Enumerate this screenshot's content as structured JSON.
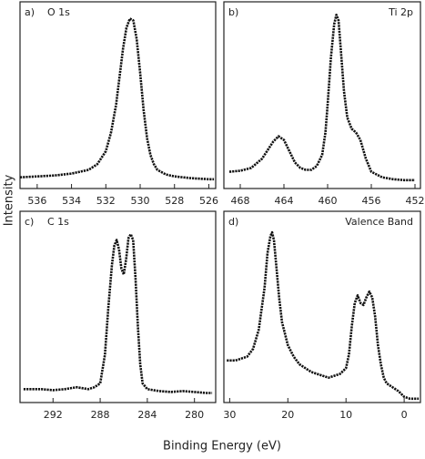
{
  "y_label": "Intensity",
  "x_label": "Binding Energy (eV)",
  "chart_data": [
    {
      "type": "line",
      "panel_label": "a)",
      "title": "O 1s",
      "title_side": "left",
      "color": "#111111",
      "x": [
        537,
        536,
        535,
        534,
        533,
        532.5,
        532,
        531.7,
        531.4,
        531.2,
        531,
        530.8,
        530.6,
        530.4,
        530.2,
        530,
        529.8,
        529.6,
        529.4,
        529.2,
        529,
        528.5,
        528,
        527,
        526,
        525.7
      ],
      "values": [
        6,
        6.5,
        7,
        8,
        10,
        13,
        20,
        30,
        45,
        60,
        75,
        86,
        91,
        90,
        80,
        62,
        42,
        27,
        18,
        13,
        10,
        7.5,
        6.5,
        5.5,
        5,
        5
      ],
      "xlim": [
        537,
        525.6
      ],
      "xticks": [
        536,
        534,
        532,
        530,
        528,
        526
      ],
      "ylim": [
        0,
        100
      ]
    },
    {
      "type": "line",
      "panel_label": "b)",
      "title": "Ti 2p",
      "title_side": "right",
      "color": "#111111",
      "x": [
        469,
        468,
        467,
        466,
        465,
        464.5,
        464,
        463.5,
        463,
        462.5,
        462,
        461.5,
        461,
        460.5,
        460.2,
        460,
        459.7,
        459.4,
        459.2,
        459,
        458.8,
        458.5,
        458.2,
        457.8,
        457.4,
        457,
        456.5,
        456,
        455,
        454,
        453,
        452
      ],
      "values": [
        9,
        9.5,
        11,
        16,
        25,
        28,
        26,
        20,
        14,
        11,
        10,
        10,
        12,
        18,
        30,
        45,
        70,
        88,
        93,
        90,
        75,
        52,
        38,
        32,
        30,
        26,
        16,
        9,
        6,
        5,
        4.5,
        4.5
      ],
      "xlim": [
        469.5,
        451.5
      ],
      "xticks": [
        468,
        464,
        460,
        456,
        452
      ],
      "ylim": [
        0,
        100
      ]
    },
    {
      "type": "line",
      "panel_label": "c)",
      "title": "C 1s",
      "title_side": "left",
      "color": "#111111",
      "x": [
        294.5,
        293,
        292,
        291,
        290,
        289,
        288.5,
        288,
        287.6,
        287.3,
        287,
        286.8,
        286.6,
        286.4,
        286.2,
        286,
        285.8,
        285.6,
        285.4,
        285.2,
        285,
        284.8,
        284.6,
        284.4,
        284,
        283,
        282,
        281,
        280,
        279,
        278.5
      ],
      "values": [
        7,
        7,
        6.5,
        7,
        8,
        7,
        8,
        10,
        25,
        50,
        72,
        82,
        85,
        80,
        70,
        67,
        75,
        86,
        88,
        85,
        65,
        40,
        20,
        10,
        7,
        6,
        5.5,
        6,
        5.5,
        5,
        5
      ],
      "xlim": [
        294.8,
        278.2
      ],
      "xticks": [
        292,
        288,
        284,
        280
      ],
      "ylim": [
        0,
        100
      ]
    },
    {
      "type": "line",
      "panel_label": "d)",
      "title": "Valence Band",
      "title_side": "right",
      "color": "#111111",
      "x": [
        30.5,
        29,
        28,
        27,
        26,
        25,
        24,
        23.5,
        23,
        22.7,
        22.4,
        22,
        21.5,
        21,
        20,
        19,
        18,
        17,
        16,
        15,
        14,
        13,
        12,
        11,
        10,
        9.5,
        9,
        8.5,
        8,
        7.5,
        7,
        6.5,
        6,
        5.5,
        5,
        4.5,
        4,
        3.5,
        3,
        2,
        1,
        0,
        -1,
        -2.5
      ],
      "values": [
        22,
        22,
        23,
        24,
        28,
        38,
        60,
        78,
        87,
        89,
        85,
        72,
        55,
        42,
        30,
        24,
        20,
        18,
        16,
        15,
        14,
        13,
        14,
        15,
        18,
        25,
        40,
        52,
        56,
        52,
        51,
        55,
        58,
        55,
        45,
        30,
        20,
        13,
        10,
        8,
        6,
        3,
        2,
        2
      ],
      "xlim": [
        31,
        -2.8
      ],
      "xticks": [
        30,
        20,
        10,
        0
      ],
      "ylim": [
        0,
        100
      ]
    }
  ]
}
